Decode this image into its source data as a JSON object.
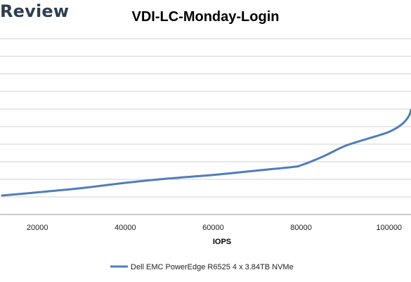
{
  "brand": {
    "text": "Review"
  },
  "chart_data": {
    "type": "line",
    "title": "VDI-LC-Monday-Login",
    "xlabel": "IOPS",
    "ylabel": "",
    "xlim": [
      11500,
      105000
    ],
    "x_ticks": [
      20000,
      40000,
      60000,
      80000,
      100000
    ],
    "x_tick_labels": [
      "20000",
      "40000",
      "60000",
      "80000",
      "100000"
    ],
    "y_gridlines": 10,
    "grid": true,
    "legend": "bottom",
    "series": [
      {
        "name": "Dell EMC PowerEdge R6525 4 x 3.84TB NVMe",
        "color": "#4f7dbd",
        "x": [
          12000,
          20000,
          30000,
          40000,
          50000,
          60000,
          70000,
          78000,
          80000,
          85000,
          90000,
          95000,
          100000,
          103000,
          104500,
          105000
        ],
        "y": [
          1.08,
          1.26,
          1.5,
          1.8,
          2.05,
          2.25,
          2.5,
          2.7,
          2.8,
          3.3,
          3.9,
          4.3,
          4.7,
          5.15,
          5.6,
          5.95
        ]
      }
    ]
  }
}
